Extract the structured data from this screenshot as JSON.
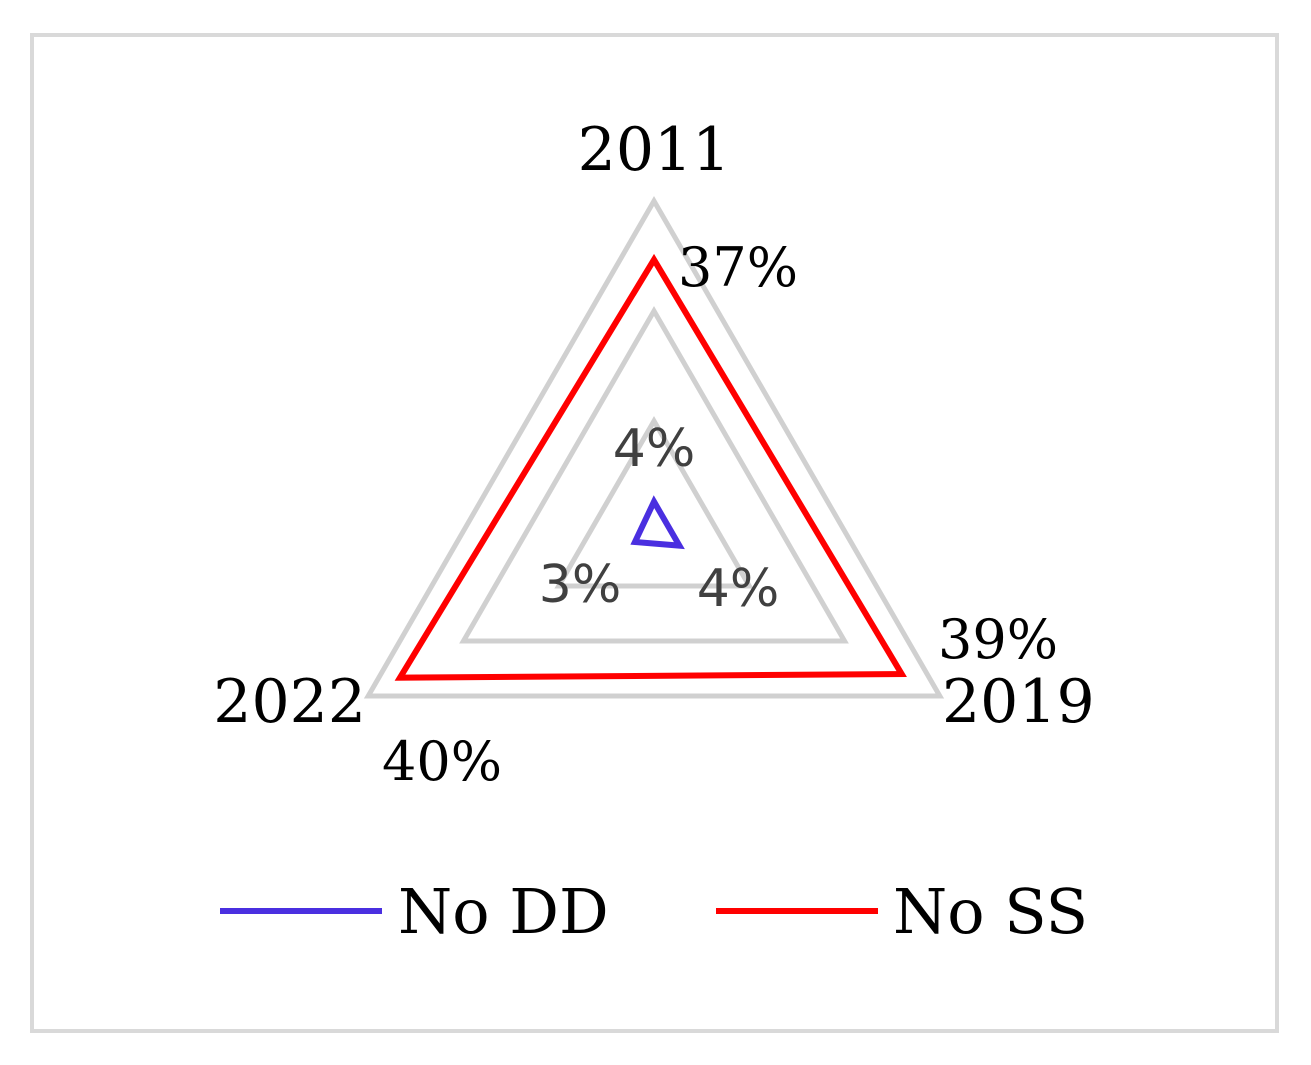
{
  "chart_data": {
    "type": "radar",
    "categories": [
      "2011",
      "2019",
      "2022"
    ],
    "series": [
      {
        "name": "No DD",
        "values": [
          4,
          4,
          3
        ],
        "labels": [
          "4%",
          "4%",
          "3%"
        ],
        "color": "#4a2fe0"
      },
      {
        "name": "No SS",
        "values": [
          37,
          39,
          40
        ],
        "labels": [
          "37%",
          "39%",
          "40%"
        ],
        "color": "#ff0000"
      }
    ],
    "grid_color": "#d0d0d0",
    "legend_position": "bottom"
  }
}
